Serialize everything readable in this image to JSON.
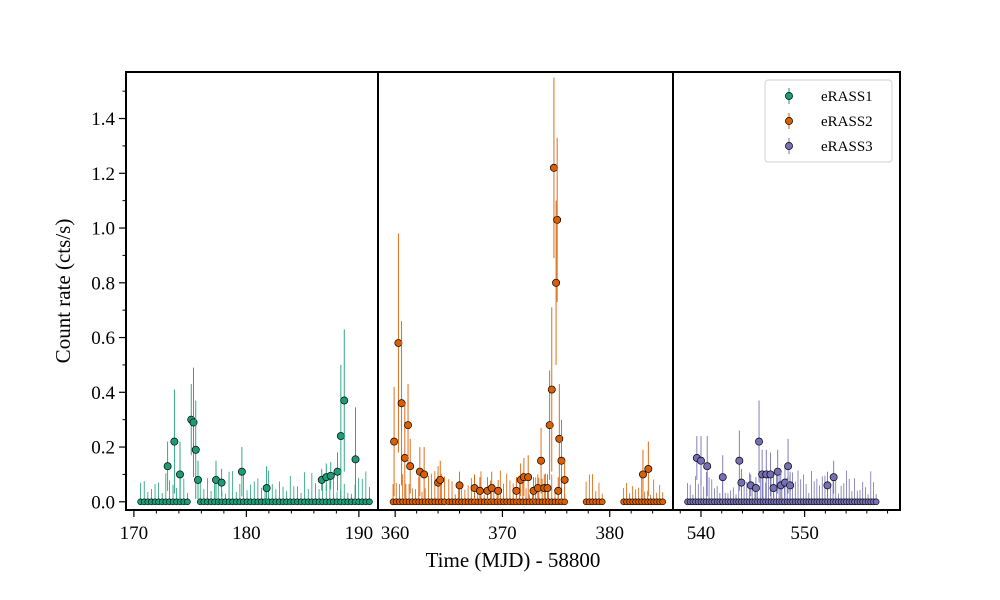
{
  "chart_data": {
    "type": "scatter",
    "xlabel": "Time (MJD) - 58800",
    "ylabel": "Count rate (cts/s)",
    "ylim": [
      -0.03,
      1.57
    ],
    "yticks": [
      0.0,
      0.2,
      0.4,
      0.6,
      0.8,
      1.0,
      1.2,
      1.4
    ],
    "yticklabels": [
      "0.0",
      "0.2",
      "0.4",
      "0.6",
      "0.8",
      "1.0",
      "1.2",
      "1.4"
    ],
    "legend_position": "top-right",
    "grid": false,
    "error_bars": "vertical",
    "panels": [
      {
        "xlim": [
          169.3,
          191.7
        ],
        "xticks": [
          170,
          180,
          190
        ],
        "xticklabels": [
          "170",
          "180",
          "190"
        ],
        "series_index": 0
      },
      {
        "xlim": [
          358.4,
          385.9
        ],
        "xticks": [
          360,
          370,
          380
        ],
        "xticklabels": [
          "360",
          "370",
          "380"
        ],
        "series_index": 1
      },
      {
        "xlim": [
          537.3,
          559.2
        ],
        "xticks": [
          540,
          550
        ],
        "xticklabels": [
          "540",
          "550"
        ],
        "series_index": 2
      }
    ],
    "series": [
      {
        "name": "eRASS1",
        "color": "#1b9e77",
        "points": [
          {
            "x": 173.0,
            "y": 0.13,
            "err": 0.09
          },
          {
            "x": 173.6,
            "y": 0.22,
            "err": 0.19
          },
          {
            "x": 174.1,
            "y": 0.1,
            "err": 0.12
          },
          {
            "x": 175.1,
            "y": 0.3,
            "err": 0.13
          },
          {
            "x": 175.3,
            "y": 0.29,
            "err": 0.2
          },
          {
            "x": 175.5,
            "y": 0.19,
            "err": 0.18
          },
          {
            "x": 175.7,
            "y": 0.08,
            "err": 0.07
          },
          {
            "x": 177.3,
            "y": 0.08,
            "err": 0.07
          },
          {
            "x": 177.8,
            "y": 0.07,
            "err": 0.05
          },
          {
            "x": 179.6,
            "y": 0.11,
            "err": 0.09
          },
          {
            "x": 181.8,
            "y": 0.05,
            "err": 0.08
          },
          {
            "x": 186.7,
            "y": 0.08,
            "err": 0.04
          },
          {
            "x": 187.1,
            "y": 0.09,
            "err": 0.05
          },
          {
            "x": 187.5,
            "y": 0.095,
            "err": 0.05
          },
          {
            "x": 188.1,
            "y": 0.11,
            "err": 0.07
          },
          {
            "x": 188.4,
            "y": 0.24,
            "err": 0.26
          },
          {
            "x": 188.7,
            "y": 0.37,
            "err": 0.26
          },
          {
            "x": 189.7,
            "y": 0.155,
            "err": 0.19
          }
        ]
      },
      {
        "name": "eRASS2",
        "color": "#d95f02",
        "points": [
          {
            "x": 359.9,
            "y": 0.22,
            "err": 0.2
          },
          {
            "x": 360.3,
            "y": 0.58,
            "err": 0.4
          },
          {
            "x": 360.6,
            "y": 0.36,
            "err": 0.3
          },
          {
            "x": 360.9,
            "y": 0.16,
            "err": 0.2
          },
          {
            "x": 361.2,
            "y": 0.28,
            "err": 0.15
          },
          {
            "x": 361.4,
            "y": 0.13,
            "err": 0.1
          },
          {
            "x": 362.3,
            "y": 0.11,
            "err": 0.09
          },
          {
            "x": 362.7,
            "y": 0.1,
            "err": 0.1
          },
          {
            "x": 364.0,
            "y": 0.07,
            "err": 0.06
          },
          {
            "x": 364.2,
            "y": 0.08,
            "err": 0.07
          },
          {
            "x": 366.0,
            "y": 0.06,
            "err": 0.05
          },
          {
            "x": 367.4,
            "y": 0.05,
            "err": 0.05
          },
          {
            "x": 367.9,
            "y": 0.04,
            "err": 0.05
          },
          {
            "x": 368.6,
            "y": 0.04,
            "err": 0.05
          },
          {
            "x": 369.0,
            "y": 0.05,
            "err": 0.06
          },
          {
            "x": 369.6,
            "y": 0.04,
            "err": 0.04
          },
          {
            "x": 371.3,
            "y": 0.04,
            "err": 0.05
          },
          {
            "x": 371.7,
            "y": 0.08,
            "err": 0.06
          },
          {
            "x": 372.0,
            "y": 0.09,
            "err": 0.07
          },
          {
            "x": 372.4,
            "y": 0.09,
            "err": 0.08
          },
          {
            "x": 372.9,
            "y": 0.04,
            "err": 0.05
          },
          {
            "x": 373.3,
            "y": 0.05,
            "err": 0.05
          },
          {
            "x": 373.6,
            "y": 0.15,
            "err": 0.12
          },
          {
            "x": 373.9,
            "y": 0.05,
            "err": 0.05
          },
          {
            "x": 374.2,
            "y": 0.05,
            "err": 0.05
          },
          {
            "x": 374.4,
            "y": 0.28,
            "err": 0.2
          },
          {
            "x": 374.6,
            "y": 0.41,
            "err": 0.3
          },
          {
            "x": 374.8,
            "y": 1.22,
            "err": 0.33
          },
          {
            "x": 375.1,
            "y": 1.03,
            "err": 0.3
          },
          {
            "x": 375.0,
            "y": 0.8,
            "err": 0.3
          },
          {
            "x": 375.3,
            "y": 0.23,
            "err": 0.2
          },
          {
            "x": 375.5,
            "y": 0.15,
            "err": 0.15
          },
          {
            "x": 375.8,
            "y": 0.08,
            "err": 0.07
          },
          {
            "x": 375.2,
            "y": 0.04,
            "err": 0.05
          },
          {
            "x": 383.1,
            "y": 0.1,
            "err": 0.09
          },
          {
            "x": 383.6,
            "y": 0.12,
            "err": 0.1
          }
        ]
      },
      {
        "name": "eRASS3",
        "color": "#7570b3",
        "points": [
          {
            "x": 539.6,
            "y": 0.16,
            "err": 0.08
          },
          {
            "x": 540.0,
            "y": 0.15,
            "err": 0.09
          },
          {
            "x": 540.6,
            "y": 0.13,
            "err": 0.11
          },
          {
            "x": 542.1,
            "y": 0.09,
            "err": 0.08
          },
          {
            "x": 543.7,
            "y": 0.15,
            "err": 0.11
          },
          {
            "x": 543.9,
            "y": 0.07,
            "err": 0.05
          },
          {
            "x": 544.8,
            "y": 0.06,
            "err": 0.04
          },
          {
            "x": 545.3,
            "y": 0.05,
            "err": 0.04
          },
          {
            "x": 545.6,
            "y": 0.22,
            "err": 0.15
          },
          {
            "x": 545.9,
            "y": 0.1,
            "err": 0.09
          },
          {
            "x": 546.3,
            "y": 0.1,
            "err": 0.09
          },
          {
            "x": 546.7,
            "y": 0.1,
            "err": 0.08
          },
          {
            "x": 547.0,
            "y": 0.05,
            "err": 0.04
          },
          {
            "x": 547.4,
            "y": 0.11,
            "err": 0.08
          },
          {
            "x": 547.7,
            "y": 0.06,
            "err": 0.05
          },
          {
            "x": 548.1,
            "y": 0.07,
            "err": 0.06
          },
          {
            "x": 548.6,
            "y": 0.06,
            "err": 0.05
          },
          {
            "x": 552.2,
            "y": 0.06,
            "err": 0.05
          },
          {
            "x": 552.8,
            "y": 0.09,
            "err": 0.06
          },
          {
            "x": 548.4,
            "y": 0.13,
            "err": 0.1
          }
        ]
      }
    ]
  }
}
